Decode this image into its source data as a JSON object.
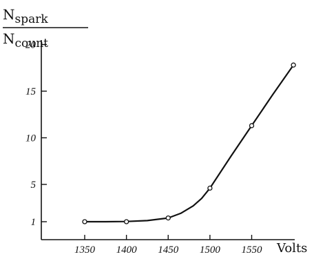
{
  "chart_data": {
    "type": "line",
    "ylabel_numerator": "N",
    "ylabel_numerator_sub": "spark",
    "ylabel_denominator": "N",
    "ylabel_denominator_sub": "count",
    "xunit": "Volts",
    "x_ticks": [
      1350,
      1400,
      1450,
      1500,
      1550
    ],
    "y_ticks": [
      1,
      5,
      10,
      15,
      20
    ],
    "xlim": [
      1325,
      1600
    ],
    "ylim": [
      0,
      20
    ],
    "grid": false,
    "series": [
      {
        "points": [
          {
            "x": 1350,
            "y": 1.0
          },
          {
            "x": 1400,
            "y": 1.0
          },
          {
            "x": 1450,
            "y": 1.4
          },
          {
            "x": 1500,
            "y": 4.6
          },
          {
            "x": 1550,
            "y": 11.3
          },
          {
            "x": 1600,
            "y": 17.8
          }
        ],
        "curve": [
          {
            "x": 1350,
            "y": 1.0
          },
          {
            "x": 1375,
            "y": 1.0
          },
          {
            "x": 1400,
            "y": 1.02
          },
          {
            "x": 1425,
            "y": 1.12
          },
          {
            "x": 1450,
            "y": 1.4
          },
          {
            "x": 1465,
            "y": 1.9
          },
          {
            "x": 1480,
            "y": 2.7
          },
          {
            "x": 1490,
            "y": 3.5
          },
          {
            "x": 1500,
            "y": 4.6
          },
          {
            "x": 1525,
            "y": 8.0
          },
          {
            "x": 1550,
            "y": 11.3
          },
          {
            "x": 1575,
            "y": 14.6
          },
          {
            "x": 1600,
            "y": 17.8
          }
        ]
      }
    ]
  }
}
